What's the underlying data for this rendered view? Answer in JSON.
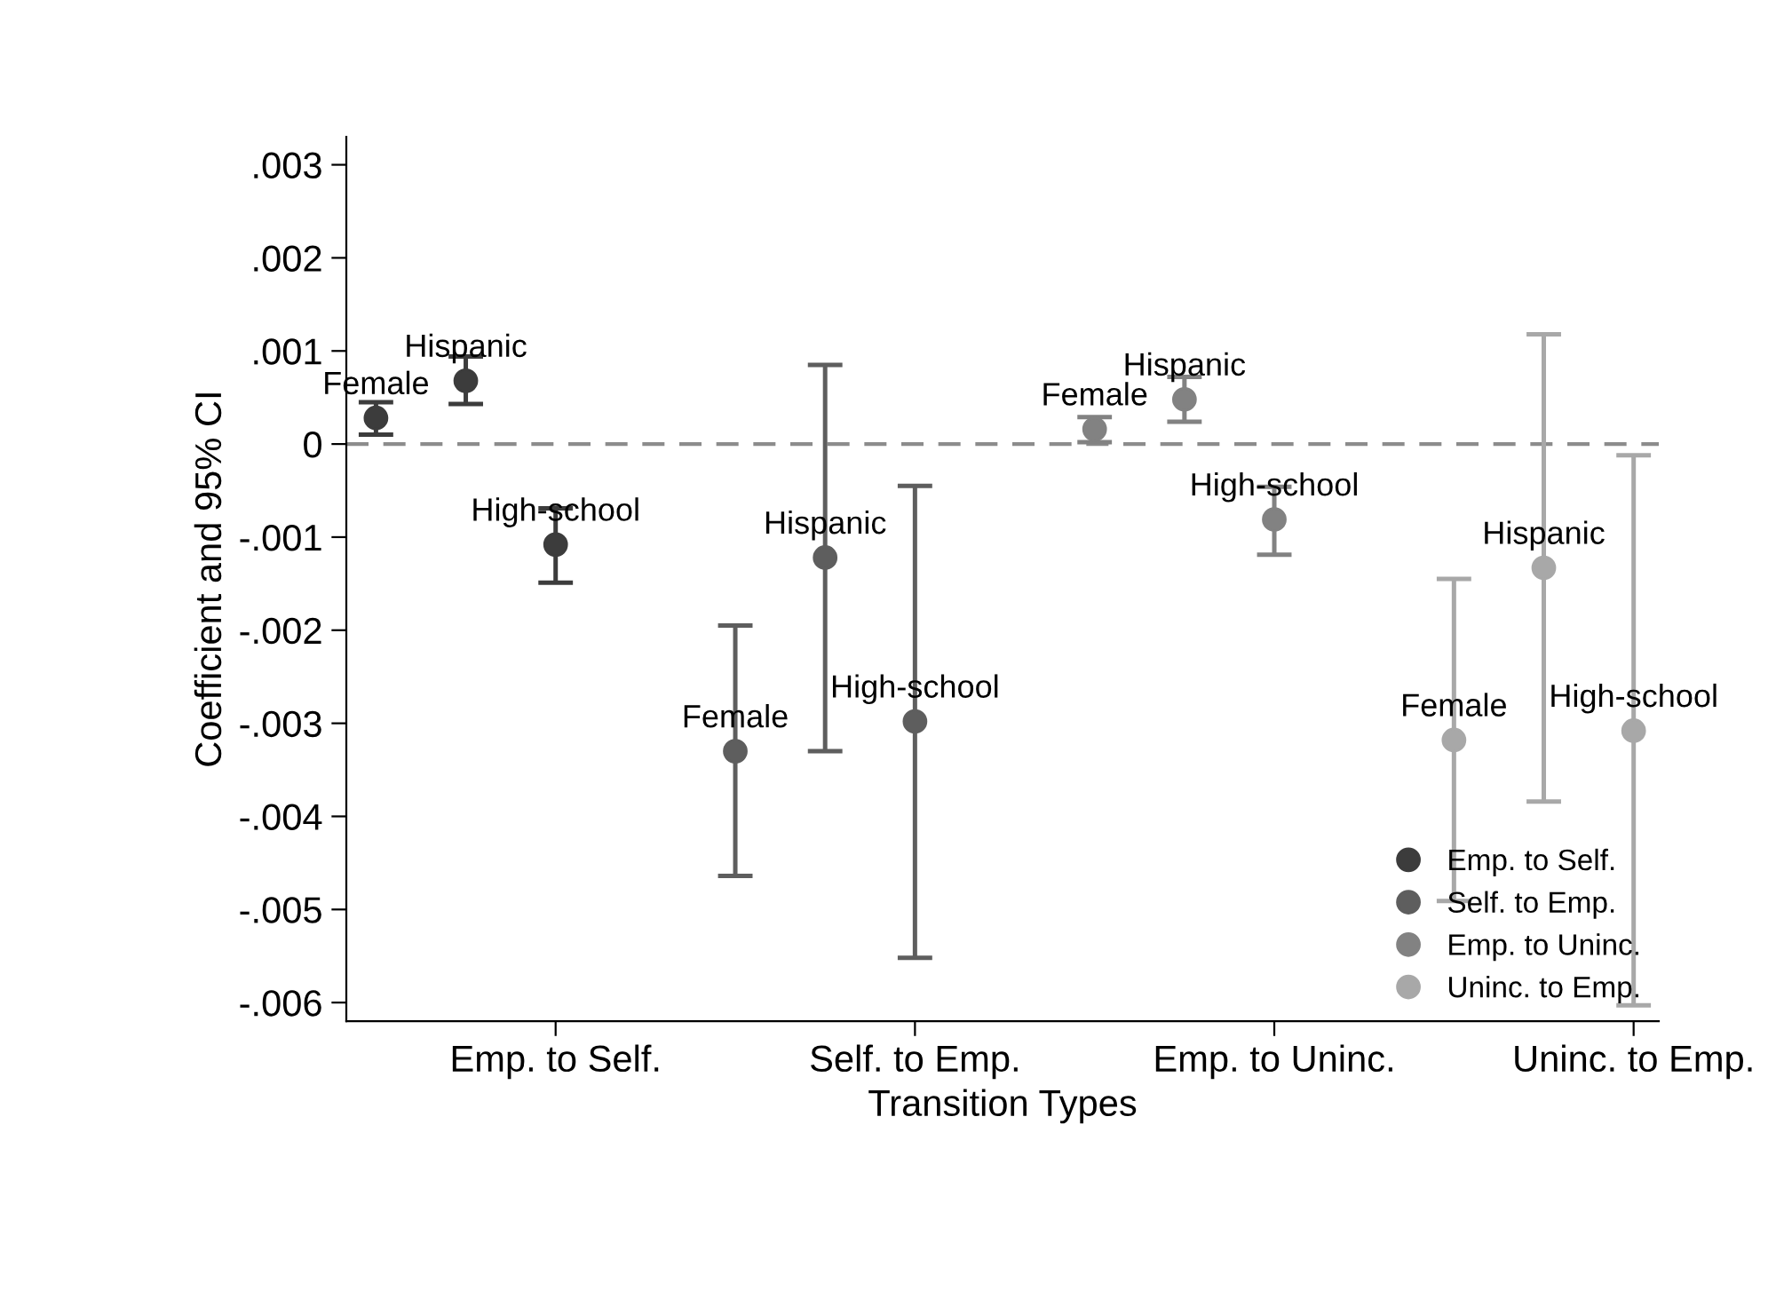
{
  "chart_data": {
    "type": "scatter",
    "xlabel": "Transition Types",
    "ylabel": "Coefficient and 95% CI",
    "categories": [
      null,
      null,
      "Emp. to Self.",
      null,
      null,
      null,
      "Self. to Emp.",
      null,
      null,
      null,
      "Emp. to Uninc.",
      null,
      null,
      null,
      "Uninc. to Emp."
    ],
    "ylim": [
      -0.0062,
      0.0033
    ],
    "yticks": [
      {
        "value": 0.003,
        "label": ".003"
      },
      {
        "value": 0.002,
        "label": ".002"
      },
      {
        "value": 0.001,
        "label": ".001"
      },
      {
        "value": 0,
        "label": "0"
      },
      {
        "value": -0.001,
        "label": "-.001"
      },
      {
        "value": -0.002,
        "label": "-.002"
      },
      {
        "value": -0.003,
        "label": "-.003"
      },
      {
        "value": -0.004,
        "label": "-.004"
      },
      {
        "value": -0.005,
        "label": "-.005"
      },
      {
        "value": -0.006,
        "label": "-.006"
      }
    ],
    "series": [
      {
        "name": "Emp. to Self.",
        "color": "#3c3c3c",
        "values": [
          0.00028,
          0.00068,
          -0.00108,
          null,
          null,
          null,
          null,
          null,
          null,
          null,
          null,
          null,
          null,
          null,
          null
        ],
        "errors": [
          [
            0.0001,
            0.00045
          ],
          [
            0.00043,
            0.00094
          ],
          [
            -0.00149,
            -0.00069
          ],
          null,
          null,
          null,
          null,
          null,
          null,
          null,
          null,
          null,
          null,
          null,
          null
        ],
        "value_labels": [
          "Female",
          "Hispanic",
          "High-school",
          null,
          null,
          null,
          null,
          null,
          null,
          null,
          null,
          null,
          null,
          null,
          null
        ]
      },
      {
        "name": "Self. to Emp.",
        "color": "#5e5e5e",
        "values": [
          null,
          null,
          null,
          null,
          -0.0033,
          -0.00122,
          -0.00298,
          null,
          null,
          null,
          null,
          null,
          null,
          null,
          null
        ],
        "errors": [
          null,
          null,
          null,
          null,
          [
            -0.00464,
            -0.00195
          ],
          [
            -0.0033,
            0.00085
          ],
          [
            -0.00552,
            -0.00045
          ],
          null,
          null,
          null,
          null,
          null,
          null,
          null,
          null
        ],
        "value_labels": [
          null,
          null,
          null,
          null,
          "Female",
          "Hispanic",
          "High-school",
          null,
          null,
          null,
          null,
          null,
          null,
          null,
          null
        ]
      },
      {
        "name": "Emp. to Uninc.",
        "color": "#828282",
        "values": [
          null,
          null,
          null,
          null,
          null,
          null,
          null,
          null,
          0.00016,
          0.00048,
          -0.00081,
          null,
          null,
          null,
          null
        ],
        "errors": [
          null,
          null,
          null,
          null,
          null,
          null,
          null,
          null,
          [
            2e-05,
            0.00029
          ],
          [
            0.00024,
            0.00072
          ],
          [
            -0.00119,
            -0.00046
          ],
          null,
          null,
          null,
          null
        ],
        "value_labels": [
          null,
          null,
          null,
          null,
          null,
          null,
          null,
          null,
          "Female",
          "Hispanic",
          "High-school",
          null,
          null,
          null,
          null
        ]
      },
      {
        "name": "Uninc. to Emp.",
        "color": "#a8a8a8",
        "values": [
          null,
          null,
          null,
          null,
          null,
          null,
          null,
          null,
          null,
          null,
          null,
          null,
          -0.00318,
          -0.00133,
          -0.00308
        ],
        "errors": [
          null,
          null,
          null,
          null,
          null,
          null,
          null,
          null,
          null,
          null,
          null,
          null,
          [
            -0.00491,
            -0.00145
          ],
          [
            -0.00384,
            0.00118
          ],
          [
            -0.00603,
            -0.00012
          ]
        ],
        "value_labels": [
          null,
          null,
          null,
          null,
          null,
          null,
          null,
          null,
          null,
          null,
          null,
          null,
          "Female",
          "Hispanic",
          "High-school"
        ]
      }
    ],
    "ref_lines": [
      {
        "axis": "y",
        "value": 0,
        "color": "#8c8c8c",
        "line_style": "dashed"
      }
    ],
    "marker": "circle",
    "legend": "bottom right",
    "grid": false
  }
}
